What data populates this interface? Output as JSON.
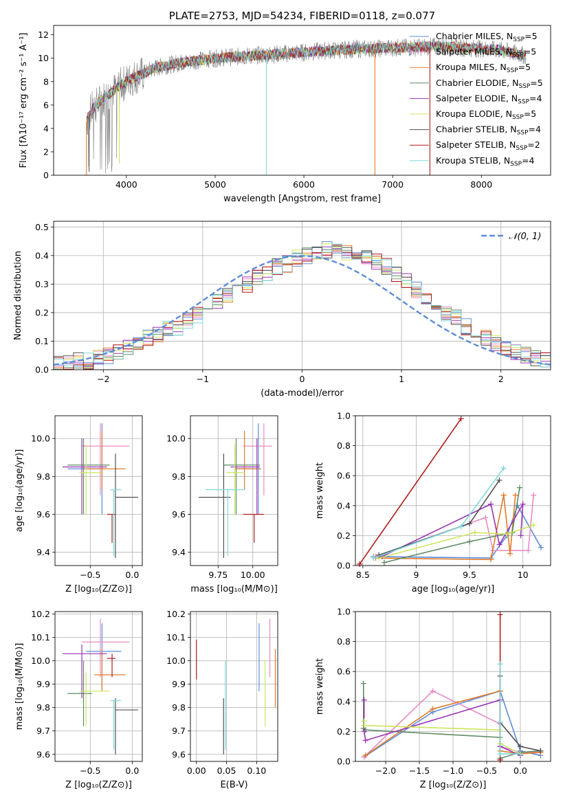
{
  "chart_data": [
    {
      "id": "spectrum",
      "type": "line",
      "title": "PLATE=2753, MJD=54234, FIBERID=0118, z=0.077",
      "xlabel": "wavelength [Angstrom, rest frame]",
      "ylabel": "Flux [fλ10⁻¹⁷ erg cm⁻² s⁻¹ A⁻¹]",
      "xlim": [
        3180,
        8780
      ],
      "ylim": [
        0,
        12.8
      ],
      "xticks": [
        4000,
        5000,
        6000,
        7000,
        8000
      ],
      "yticks": [
        0,
        2,
        4,
        6,
        8,
        10,
        12
      ],
      "grid": false,
      "legend": "upper-right",
      "continuum": {
        "x": [
          3550,
          3600,
          3700,
          3800,
          3900,
          4000,
          4100,
          4200,
          4300,
          4400,
          4600,
          4800,
          5000,
          5200,
          5400,
          5600,
          5800,
          6000,
          6200,
          6400,
          6600,
          6800,
          7000,
          7200,
          7400,
          7600,
          7800,
          8000,
          8200,
          8500
        ],
        "y": [
          4.6,
          5.5,
          6.3,
          6.9,
          7.5,
          8.0,
          8.4,
          8.7,
          9.1,
          9.3,
          9.6,
          9.8,
          10.0,
          10.1,
          10.2,
          10.3,
          10.4,
          10.5,
          10.6,
          10.7,
          10.8,
          10.8,
          10.9,
          10.9,
          11.0,
          11.0,
          10.9,
          10.8,
          10.7,
          10.2
        ]
      },
      "dips": [
        {
          "x": 3550,
          "y": 0.0,
          "series": "Kroupa MILES"
        },
        {
          "x": 3580,
          "y": 0.3,
          "series": "Chabrier STELIB"
        },
        {
          "x": 3920,
          "y": 1.0,
          "series": "Kroupa ELODIE"
        },
        {
          "x": 5577,
          "y": 0.0,
          "series": "Kroupa STELIB"
        },
        {
          "x": 6800,
          "y": 0.0,
          "series": "Kroupa MILES"
        },
        {
          "x": 7420,
          "y": 0.0,
          "series": "Salpeter STELIB"
        }
      ],
      "series": [
        {
          "name": "Chabrier MILES, N_SSP=5",
          "color": "#5b8bd9"
        },
        {
          "name": "Salpeter MILES, N_SSP=5",
          "color": "#e88bc4"
        },
        {
          "name": "Kroupa MILES, N_SSP=5",
          "color": "#e07b28"
        },
        {
          "name": "Chabrier ELODIE, N_SSP=5",
          "color": "#5c8a64"
        },
        {
          "name": "Salpeter ELODIE, N_SSP=4",
          "color": "#9b33b5"
        },
        {
          "name": "Kroupa ELODIE, N_SSP=5",
          "color": "#cce65c"
        },
        {
          "name": "Chabrier STELIB, N_SSP=4",
          "color": "#505050"
        },
        {
          "name": "Salpeter STELIB, N_SSP=2",
          "color": "#b01a1a"
        },
        {
          "name": "Kroupa STELIB, N_SSP=4",
          "color": "#7fd8dc"
        }
      ]
    },
    {
      "id": "residuals",
      "type": "histogram",
      "xlabel": "(data-model)/error",
      "ylabel": "Normed distribution",
      "xlim": [
        -2.5,
        2.5
      ],
      "ylim": [
        0,
        0.52
      ],
      "xticks": [
        -2,
        -1,
        0,
        1,
        2
      ],
      "yticks": [
        0.0,
        0.1,
        0.2,
        0.3,
        0.4,
        0.5
      ],
      "grid": true,
      "legend": "upper-right",
      "legend_label": "𝒩(0, 1)",
      "bin_width": 0.1,
      "bin_start": -2.5,
      "values": [
        0.02,
        0.02,
        0.03,
        0.03,
        0.04,
        0.05,
        0.06,
        0.08,
        0.09,
        0.11,
        0.12,
        0.14,
        0.15,
        0.17,
        0.19,
        0.21,
        0.24,
        0.26,
        0.28,
        0.3,
        0.32,
        0.34,
        0.36,
        0.37,
        0.39,
        0.4,
        0.41,
        0.42,
        0.42,
        0.41,
        0.4,
        0.39,
        0.38,
        0.36,
        0.33,
        0.31,
        0.28,
        0.25,
        0.22,
        0.2,
        0.18,
        0.15,
        0.13,
        0.11,
        0.09,
        0.07,
        0.06,
        0.05,
        0.04,
        0.03
      ]
    },
    {
      "id": "age-vs-z",
      "type": "errorbar",
      "xlabel": "Z [log₁₀(Z/Z⊙)]",
      "ylabel": "age  [log₁₀(age/yr)]",
      "xlim": [
        -0.92,
        0.12
      ],
      "ylim": [
        9.33,
        10.12
      ],
      "xticks": [
        -0.5,
        0.0
      ],
      "xtick_labels": [
        "−0.5",
        "0.0"
      ],
      "yticks": [
        9.4,
        9.6,
        9.8,
        10.0
      ],
      "grid": true,
      "points": [
        {
          "x": -0.36,
          "y": 9.84,
          "xlo": -0.77,
          "xhi": -0.33,
          "ylo": 9.6,
          "yhi": 10.08,
          "series": "Chabrier MILES"
        },
        {
          "x": -0.38,
          "y": 9.96,
          "xlo": -0.6,
          "xhi": -0.03,
          "ylo": 9.7,
          "yhi": 10.08,
          "series": "Salpeter MILES"
        },
        {
          "x": -0.36,
          "y": 9.84,
          "xlo": -0.57,
          "xhi": -0.08,
          "ylo": 9.73,
          "yhi": 10.04,
          "series": "Kroupa MILES"
        },
        {
          "x": -0.58,
          "y": 9.86,
          "xlo": -0.77,
          "xhi": -0.27,
          "ylo": 9.6,
          "yhi": 10.0,
          "series": "Chabrier ELODIE"
        },
        {
          "x": -0.6,
          "y": 9.85,
          "xlo": -0.83,
          "xhi": -0.3,
          "ylo": 9.6,
          "yhi": 10.0,
          "series": "Salpeter ELODIE"
        },
        {
          "x": -0.55,
          "y": 9.82,
          "xlo": -0.63,
          "xhi": -0.37,
          "ylo": 9.6,
          "yhi": 9.97,
          "series": "Kroupa ELODIE"
        },
        {
          "x": -0.2,
          "y": 9.69,
          "xlo": -0.2,
          "xhi": 0.07,
          "ylo": 9.37,
          "yhi": 9.92,
          "series": "Chabrier STELIB"
        },
        {
          "x": -0.24,
          "y": 9.6,
          "xlo": -0.3,
          "xhi": -0.2,
          "ylo": 9.45,
          "yhi": 9.6,
          "series": "Salpeter STELIB"
        },
        {
          "x": -0.22,
          "y": 9.73,
          "xlo": -0.26,
          "xhi": -0.13,
          "ylo": 9.38,
          "yhi": 9.73,
          "series": "Kroupa STELIB"
        }
      ]
    },
    {
      "id": "age-vs-mass",
      "type": "errorbar",
      "xlabel": "mass [log₁₀(M/M⊙)]",
      "ylabel": "",
      "xlim": [
        9.55,
        10.18
      ],
      "ylim": [
        9.33,
        10.12
      ],
      "xticks": [
        9.75,
        10.0
      ],
      "xtick_labels": [
        "9.75",
        "10.00"
      ],
      "yticks": [
        9.4,
        9.6,
        9.8,
        10.0
      ],
      "grid": true,
      "points": [
        {
          "x": 10.04,
          "y": 9.84,
          "xlo": 9.87,
          "xhi": 10.06,
          "ylo": 9.6,
          "yhi": 10.08,
          "series": "Chabrier MILES"
        },
        {
          "x": 10.08,
          "y": 9.96,
          "xlo": 9.93,
          "xhi": 10.14,
          "ylo": 9.7,
          "yhi": 10.08,
          "series": "Salpeter MILES"
        },
        {
          "x": 9.94,
          "y": 9.84,
          "xlo": 9.87,
          "xhi": 10.05,
          "ylo": 9.73,
          "yhi": 10.04,
          "series": "Kroupa MILES"
        },
        {
          "x": 9.88,
          "y": 9.86,
          "xlo": 9.79,
          "xhi": 10.05,
          "ylo": 9.6,
          "yhi": 10.0,
          "series": "Chabrier ELODIE"
        },
        {
          "x": 10.03,
          "y": 9.85,
          "xlo": 9.84,
          "xhi": 10.05,
          "ylo": 9.6,
          "yhi": 10.0,
          "series": "Salpeter ELODIE"
        },
        {
          "x": 9.87,
          "y": 9.82,
          "xlo": 9.81,
          "xhi": 9.94,
          "ylo": 9.6,
          "yhi": 9.97,
          "series": "Kroupa ELODIE"
        },
        {
          "x": 9.79,
          "y": 9.69,
          "xlo": 9.61,
          "xhi": 9.84,
          "ylo": 9.37,
          "yhi": 9.92,
          "series": "Chabrier STELIB"
        },
        {
          "x": 10.01,
          "y": 9.6,
          "xlo": 9.93,
          "xhi": 10.08,
          "ylo": 9.45,
          "yhi": 9.6,
          "series": "Salpeter STELIB"
        },
        {
          "x": 9.82,
          "y": 9.73,
          "xlo": 9.66,
          "xhi": 9.94,
          "ylo": 9.38,
          "yhi": 9.73,
          "series": "Kroupa STELIB"
        }
      ]
    },
    {
      "id": "mass-weight-vs-age",
      "type": "line",
      "xlabel": "age  [log₁₀(age/yr)]",
      "ylabel": "mass weight",
      "xlim": [
        8.43,
        10.26
      ],
      "ylim": [
        0,
        1.0
      ],
      "xticks": [
        8.5,
        9.0,
        9.5,
        10.0
      ],
      "yticks": [
        0.0,
        0.2,
        0.4,
        0.6,
        0.8,
        1.0
      ],
      "grid": true,
      "series": [
        {
          "name": "Chabrier MILES",
          "x": [
            8.6,
            9.7,
            9.85,
            9.95,
            10.17
          ],
          "y": [
            0.06,
            0.05,
            0.2,
            0.4,
            0.12
          ]
        },
        {
          "name": "Salpeter MILES",
          "x": [
            8.62,
            9.65,
            9.72,
            10.05,
            10.1
          ],
          "y": [
            0.06,
            0.32,
            0.1,
            0.1,
            0.47
          ]
        },
        {
          "name": "Kroupa MILES",
          "x": [
            8.62,
            9.7,
            9.82,
            9.88,
            9.93
          ],
          "y": [
            0.05,
            0.04,
            0.47,
            0.08,
            0.47
          ]
        },
        {
          "name": "Chabrier ELODIE",
          "x": [
            8.7,
            9.5,
            9.9,
            9.97
          ],
          "y": [
            0.02,
            0.16,
            0.22,
            0.52
          ]
        },
        {
          "name": "Salpeter ELODIE",
          "x": [
            8.68,
            9.7,
            9.78,
            10.0,
            9.98
          ],
          "y": [
            0.06,
            0.41,
            0.14,
            0.41,
            0.2
          ]
        },
        {
          "name": "Kroupa ELODIE",
          "x": [
            8.65,
            9.55,
            9.85,
            10.1
          ],
          "y": [
            0.05,
            0.22,
            0.21,
            0.27
          ]
        },
        {
          "name": "Chabrier STELIB",
          "x": [
            8.65,
            9.5,
            9.78
          ],
          "y": [
            0.07,
            0.28,
            0.57
          ]
        },
        {
          "name": "Salpeter STELIB",
          "x": [
            8.47,
            9.42
          ],
          "y": [
            0.01,
            0.98
          ]
        },
        {
          "name": "Kroupa STELIB",
          "x": [
            8.6,
            9.42,
            9.82
          ],
          "y": [
            0.05,
            0.26,
            0.65
          ]
        }
      ]
    },
    {
      "id": "mass-vs-z",
      "type": "errorbar",
      "xlabel": "Z [log₁₀(Z/Z⊙)]",
      "ylabel": "mass [log₁₀(M/M⊙)]",
      "xlim": [
        -0.92,
        0.12
      ],
      "ylim": [
        9.57,
        10.21
      ],
      "xticks": [
        -0.5,
        0.0
      ],
      "xtick_labels": [
        "−0.5",
        "0.0"
      ],
      "yticks": [
        9.6,
        9.7,
        9.8,
        9.9,
        10.0,
        10.1,
        10.2
      ],
      "grid": true,
      "points": [
        {
          "x": -0.36,
          "y": 10.04,
          "xlo": -0.55,
          "xhi": -0.13,
          "ylo": 9.87,
          "yhi": 10.16,
          "series": "Chabrier MILES"
        },
        {
          "x": -0.38,
          "y": 10.08,
          "xlo": -0.6,
          "xhi": -0.03,
          "ylo": 9.93,
          "yhi": 10.18,
          "series": "Salpeter MILES"
        },
        {
          "x": -0.36,
          "y": 9.94,
          "xlo": -0.45,
          "xhi": -0.08,
          "ylo": 9.87,
          "yhi": 10.05,
          "series": "Kroupa MILES"
        },
        {
          "x": -0.58,
          "y": 9.86,
          "xlo": -0.77,
          "xhi": -0.48,
          "ylo": 9.72,
          "yhi": 10.0,
          "series": "Chabrier ELODIE"
        },
        {
          "x": -0.6,
          "y": 10.03,
          "xlo": -0.83,
          "xhi": -0.3,
          "ylo": 9.84,
          "yhi": 10.07,
          "series": "Salpeter ELODIE"
        },
        {
          "x": -0.55,
          "y": 9.87,
          "xlo": -0.63,
          "xhi": -0.27,
          "ylo": 9.72,
          "yhi": 9.95,
          "series": "Kroupa ELODIE"
        },
        {
          "x": -0.2,
          "y": 9.79,
          "xlo": -0.2,
          "xhi": 0.07,
          "ylo": 9.6,
          "yhi": 9.84,
          "series": "Chabrier STELIB"
        },
        {
          "x": -0.24,
          "y": 10.01,
          "xlo": -0.3,
          "xhi": -0.2,
          "ylo": 9.93,
          "yhi": 10.03,
          "series": "Salpeter STELIB"
        },
        {
          "x": -0.22,
          "y": 9.83,
          "xlo": -0.26,
          "xhi": -0.13,
          "ylo": 9.62,
          "yhi": 9.83,
          "series": "Kroupa STELIB"
        }
      ]
    },
    {
      "id": "mass-vs-ebv",
      "type": "errorbar",
      "xlabel": "E(B-V)",
      "ylabel": "",
      "xlim": [
        -0.01,
        0.135
      ],
      "ylim": [
        9.57,
        10.21
      ],
      "xticks": [
        0.0,
        0.05,
        0.1
      ],
      "xtick_labels": [
        "0.00",
        "0.05",
        "0.10"
      ],
      "yticks": [
        9.6,
        9.7,
        9.8,
        9.9,
        10.0,
        10.1,
        10.2
      ],
      "grid": true,
      "points": [
        {
          "x": 0.104,
          "y": 10.04,
          "ylo": 9.87,
          "yhi": 10.16,
          "series": "Chabrier MILES"
        },
        {
          "x": 0.122,
          "y": 10.08,
          "ylo": 9.93,
          "yhi": 10.18,
          "series": "Salpeter MILES"
        },
        {
          "x": 0.131,
          "y": 9.94,
          "ylo": 9.8,
          "yhi": 10.05,
          "series": "Kroupa MILES"
        },
        {
          "x": 0.114,
          "y": 9.86,
          "ylo": 9.72,
          "yhi": 10.0,
          "series": "Kroupa ELODIE"
        },
        {
          "x": 0.045,
          "y": 9.79,
          "ylo": 9.6,
          "yhi": 9.84,
          "series": "Chabrier STELIB"
        },
        {
          "x": 0.0,
          "y": 10.01,
          "ylo": 9.92,
          "yhi": 10.09,
          "series": "Salpeter STELIB"
        },
        {
          "x": 0.048,
          "y": 9.83,
          "ylo": 9.62,
          "yhi": 10.0,
          "series": "Kroupa STELIB"
        }
      ]
    },
    {
      "id": "mass-weight-vs-z",
      "type": "line",
      "xlabel": "Z [log₁₀(Z/Z⊙)]",
      "ylabel": "mass weight",
      "xlim": [
        -2.45,
        0.45
      ],
      "ylim": [
        0,
        1.0
      ],
      "xticks": [
        -2.0,
        -1.5,
        -1.0,
        -0.5,
        0.0
      ],
      "xtick_labels": [
        "−2.0",
        "−1.5",
        "−1.0",
        "−0.5",
        "0.0"
      ],
      "yticks": [
        0.0,
        0.2,
        0.4,
        0.6,
        0.8,
        1.0
      ],
      "grid": true,
      "series": [
        {
          "name": "Chabrier MILES",
          "x": [
            -2.32,
            -1.3,
            -0.3,
            0.0,
            0.3
          ],
          "y": [
            0.03,
            0.33,
            0.47,
            0.07,
            0.04
          ]
        },
        {
          "name": "Salpeter MILES",
          "x": [
            -2.32,
            -1.3,
            -0.3,
            -0.3,
            0.0,
            0.3
          ],
          "y": [
            0.03,
            0.47,
            0.25,
            0.1,
            0.06,
            0.06
          ]
        },
        {
          "name": "Kroupa MILES",
          "x": [
            -2.3,
            -1.3,
            -0.3,
            -0.3,
            0.0,
            0.3
          ],
          "y": [
            0.04,
            0.35,
            0.47,
            0.07,
            0.05,
            0.06
          ]
        },
        {
          "name": "Chabrier ELODIE",
          "x": [
            -2.33,
            -2.33,
            -2.3,
            -0.3,
            -0.3,
            0.0,
            0.3
          ],
          "y": [
            0.52,
            0.22,
            0.21,
            0.16,
            0.02,
            0.06,
            0.07
          ]
        },
        {
          "name": "Salpeter ELODIE",
          "x": [
            -2.32,
            -2.32,
            -2.3,
            -0.3,
            -0.3,
            0.0
          ],
          "y": [
            0.41,
            0.2,
            0.14,
            0.41,
            0.1,
            0.04
          ]
        },
        {
          "name": "Kroupa ELODIE",
          "x": [
            -2.32,
            -2.32,
            -0.3,
            -0.3,
            0.0
          ],
          "y": [
            0.27,
            0.24,
            0.21,
            0.12,
            0.05
          ]
        },
        {
          "name": "Chabrier STELIB",
          "x": [
            -0.3,
            -0.3,
            0.0,
            0.3
          ],
          "y": [
            0.57,
            0.26,
            0.1,
            0.07
          ]
        },
        {
          "name": "Salpeter STELIB",
          "x": [
            -0.3,
            -0.3
          ],
          "y": [
            0.98,
            0.01
          ]
        },
        {
          "name": "Kroupa STELIB",
          "x": [
            -0.3,
            -0.3,
            -0.3,
            0.0
          ],
          "y": [
            0.65,
            0.26,
            0.05,
            0.05
          ]
        }
      ]
    }
  ]
}
